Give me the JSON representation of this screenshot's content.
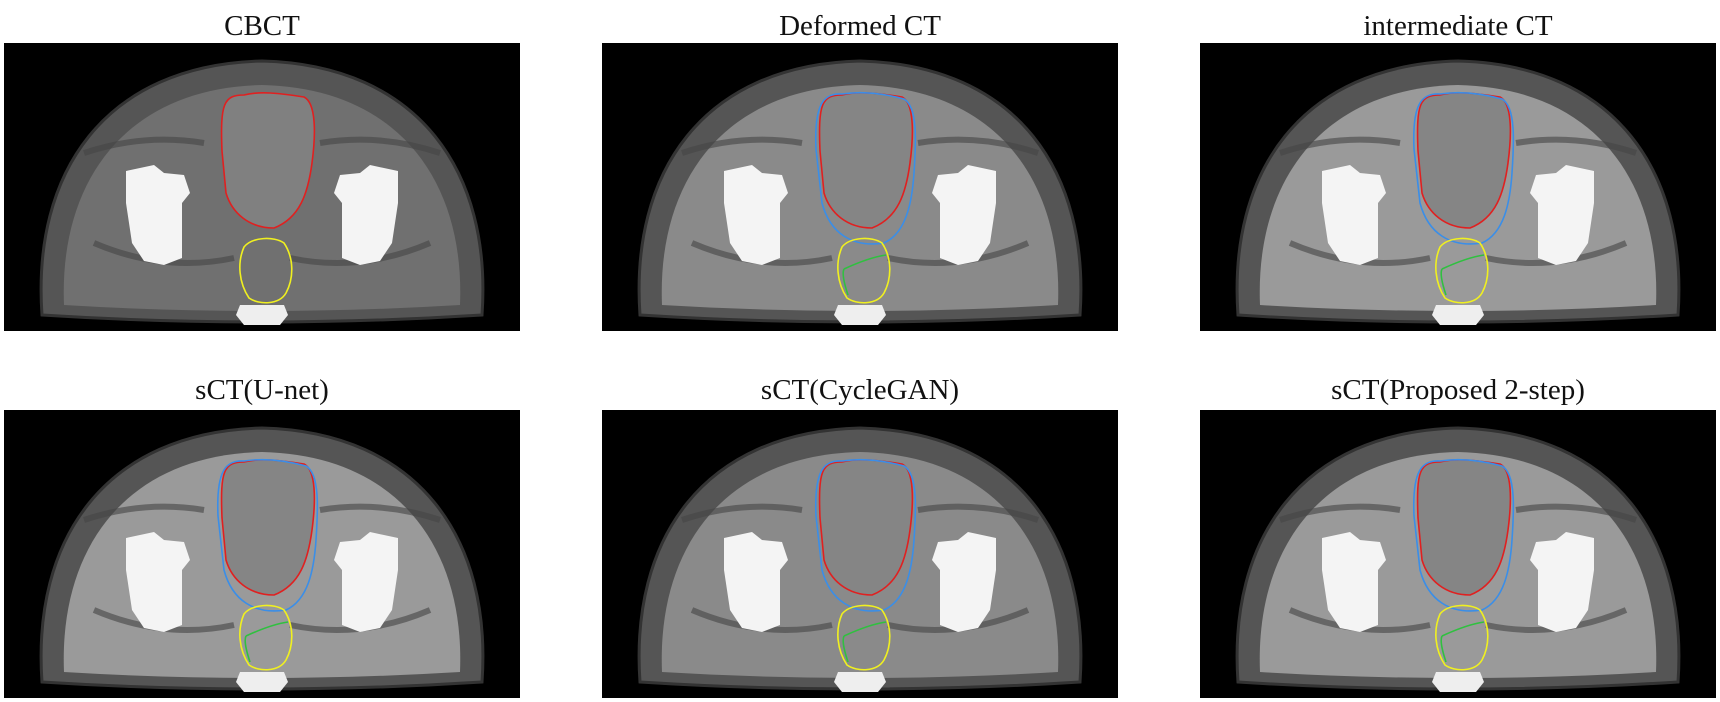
{
  "figure": {
    "panels": [
      {
        "title": "CBCT",
        "contours": [
          "red",
          "yellow"
        ],
        "style": "cbct"
      },
      {
        "title": "Deformed CT",
        "contours": [
          "red",
          "blue",
          "yellow",
          "green"
        ],
        "style": "ct"
      },
      {
        "title": "intermediate CT",
        "contours": [
          "red",
          "blue",
          "yellow",
          "green"
        ],
        "style": "smooth"
      },
      {
        "title": "sCT(U-net)",
        "contours": [
          "red",
          "blue",
          "yellow",
          "green"
        ],
        "style": "smooth"
      },
      {
        "title": "sCT(CycleGAN)",
        "contours": [
          "red",
          "blue",
          "yellow",
          "green"
        ],
        "style": "ct"
      },
      {
        "title": "sCT(Proposed 2-step)",
        "contours": [
          "red",
          "blue",
          "yellow",
          "green"
        ],
        "style": "smooth"
      }
    ],
    "contour_colors": {
      "red": "#e02020",
      "blue": "#3a8ee8",
      "yellow": "#f0f020",
      "green": "#30c040"
    }
  }
}
